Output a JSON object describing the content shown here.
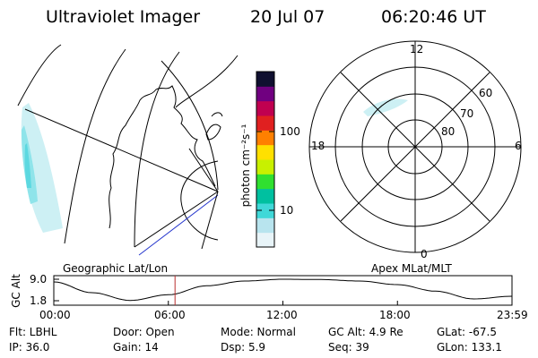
{
  "header": {
    "title": "Ultraviolet Imager",
    "date": "20 Jul 07",
    "time": "06:20:46 UT"
  },
  "panels": {
    "left_caption": "Geographic Lat/Lon",
    "right_caption": "Apex MLat/MLT"
  },
  "colorbar": {
    "unit_label": "photon cm⁻²s⁻¹",
    "scale": "log",
    "ticks": [
      "100",
      "10"
    ],
    "colors": [
      "#e8f4f8",
      "#b8e4ee",
      "#40d8d8",
      "#00c0a0",
      "#30e030",
      "#c8f000",
      "#ffe000",
      "#ff8000",
      "#e02020",
      "#c00050",
      "#700080",
      "#101030"
    ]
  },
  "polar_plot": {
    "mlt_labels": [
      "12",
      "6",
      "0",
      "18"
    ],
    "lat_labels": [
      "60",
      "70",
      "80"
    ]
  },
  "chart_data": {
    "type": "line",
    "title": "",
    "ylabel": "GC Alt",
    "y_ticks": [
      "9.0",
      "1.8"
    ],
    "ylim": [
      1.8,
      9.0
    ],
    "x_ticks": [
      "00:00",
      "06:00",
      "12:00",
      "18:00",
      "23:59"
    ],
    "xlim": [
      0,
      24
    ],
    "current_time_hours": 6.35,
    "series": [
      {
        "x": [
          0,
          2,
          4,
          6,
          8,
          10,
          12,
          14,
          16,
          18,
          20,
          22,
          24
        ],
        "values": [
          8.1,
          4.5,
          1.9,
          3.8,
          6.8,
          8.4,
          9.0,
          8.9,
          8.4,
          7.2,
          5.0,
          2.4,
          3.3
        ]
      }
    ]
  },
  "info": {
    "flt": "Flt: LBHL",
    "ip": "IP: 36.0",
    "door": "Door: Open",
    "gain": "Gain: 14",
    "mode": "Mode: Normal",
    "dsp": "Dsp:    5.9",
    "gcalt": "GC Alt: 4.9 Re",
    "seq": "Seq: 39",
    "glat": "GLat: -67.5",
    "glon": "GLon: 133.1"
  }
}
